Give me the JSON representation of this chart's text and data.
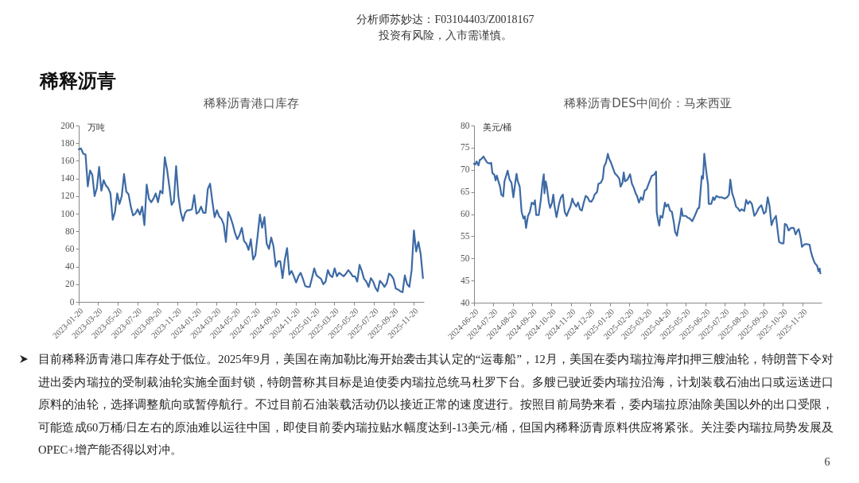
{
  "chart_data": [
    {
      "type": "line",
      "title": "稀释沥青港口库存",
      "ylabel": "万吨",
      "annotations": [
        "稀释沥青",
        "分析师苏妙达：F03104403/Z0018167",
        "投资有风险，入市需谨慎。",
        "目前稀释沥青港口库存处于低位。2025年9月，美国在南加勒比海开始袭击其认定的“运毒船”，12月，美国在委内瑞拉海岸扣押三艘油轮，特朗普下令对进出委内瑞拉的受制裁油轮实施全面封锁，特朗普称其目标是迫使委内瑞拉总统马杜罗下台。多艘已驶近委内瑞拉沿海，计划装载石油出口或运送进口原料的油轮，选择调整航向或暂停航行。不过目前石油装载活动仍以接近正常的速度进行。按照目前局势来看，委内瑞拉原油除美国以外的出口受限，可能造成60万桶/日左右的原油难以运往中国，即使目前委内瑞拉贴水幅度达到-13美元/桶，但国内稀释沥青原料供应将紧张。关注委内瑞拉局势发展及OPEC+增产能否得以对冲。",
        "6"
      ],
      "x": [
        "2023-01-20",
        "2023-01-27",
        "2023-02-03",
        "2023-02-10",
        "2023-02-17",
        "2023-02-24",
        "2023-03-03",
        "2023-03-10",
        "2023-03-17",
        "2023-03-24",
        "2023-03-31",
        "2023-04-07",
        "2023-04-14",
        "2023-04-21",
        "2023-04-28",
        "2023-05-05",
        "2023-05-12",
        "2023-05-19",
        "2023-05-26",
        "2023-06-02",
        "2023-06-09",
        "2023-06-16",
        "2023-06-23",
        "2023-06-30",
        "2023-07-07",
        "2023-07-14",
        "2023-07-21",
        "2023-07-28",
        "2023-08-04",
        "2023-08-11",
        "2023-08-18",
        "2023-08-25",
        "2023-09-01",
        "2023-09-08",
        "2023-09-15",
        "2023-09-22",
        "2023-09-29",
        "2023-10-06",
        "2023-10-13",
        "2023-10-20",
        "2023-10-27",
        "2023-11-03",
        "2023-11-10",
        "2023-11-17",
        "2023-11-24",
        "2023-12-01",
        "2023-12-08",
        "2023-12-15",
        "2023-12-22",
        "2023-12-29",
        "2024-01-05",
        "2024-01-12",
        "2024-01-19",
        "2024-01-26",
        "2024-02-02",
        "2024-02-09",
        "2024-02-16",
        "2024-02-23",
        "2024-03-01",
        "2024-03-08",
        "2024-03-15",
        "2024-03-22",
        "2024-03-29",
        "2024-04-05",
        "2024-04-12",
        "2024-04-19",
        "2024-04-26",
        "2024-05-03",
        "2024-05-10",
        "2024-05-17",
        "2024-05-24",
        "2024-05-31",
        "2024-06-07",
        "2024-06-14",
        "2024-06-21",
        "2024-06-28",
        "2024-07-05",
        "2024-07-12",
        "2024-07-19",
        "2024-07-26",
        "2024-08-02",
        "2024-08-09",
        "2024-08-16",
        "2024-08-23",
        "2024-08-30",
        "2024-09-06",
        "2024-09-13",
        "2024-09-20",
        "2024-09-27",
        "2024-10-04",
        "2024-10-11",
        "2024-10-18",
        "2024-10-25",
        "2024-11-01",
        "2024-11-08",
        "2024-11-15",
        "2024-11-22",
        "2024-11-29",
        "2024-12-06",
        "2024-12-13",
        "2024-12-20",
        "2024-12-27",
        "2025-01-03",
        "2025-01-10",
        "2025-01-17",
        "2025-01-24",
        "2025-01-31",
        "2025-02-07",
        "2025-02-14",
        "2025-02-21",
        "2025-02-28",
        "2025-03-07",
        "2025-03-14",
        "2025-03-21",
        "2025-03-28",
        "2025-04-04",
        "2025-04-11",
        "2025-04-18",
        "2025-04-25",
        "2025-05-02",
        "2025-05-09",
        "2025-05-16",
        "2025-05-23",
        "2025-05-30",
        "2025-06-06",
        "2025-06-13",
        "2025-06-20",
        "2025-06-27",
        "2025-07-04",
        "2025-07-11",
        "2025-07-18",
        "2025-07-25",
        "2025-08-01",
        "2025-08-08",
        "2025-08-15",
        "2025-08-22",
        "2025-08-29",
        "2025-09-05",
        "2025-09-12",
        "2025-09-19",
        "2025-09-26",
        "2025-10-03",
        "2025-10-10",
        "2025-10-17",
        "2025-10-24",
        "2025-10-31",
        "2025-11-07",
        "2025-11-14",
        "2025-11-21",
        "2025-11-28",
        "2025-12-05",
        "2025-12-12",
        "2025-12-19"
      ],
      "series": [
        {
          "color": "#3d6aa5",
          "values": [
            173,
            174,
            168,
            167,
            131,
            149,
            144,
            120,
            129,
            153,
            126,
            138,
            132,
            129,
            123,
            93,
            102,
            123,
            111,
            120,
            145,
            125,
            122,
            108,
            98,
            100,
            105,
            99,
            108,
            87,
            133,
            117,
            113,
            117,
            123,
            113,
            126,
            123,
            164,
            150,
            131,
            110,
            114,
            154,
            120,
            102,
            92,
            101,
            104,
            104,
            105,
            121,
            100,
            102,
            108,
            101,
            101,
            128,
            134,
            114,
            96,
            104,
            97,
            94,
            88,
            68,
            102,
            96,
            88,
            78,
            71,
            76,
            84,
            69,
            66,
            59,
            71,
            48,
            53,
            75,
            99,
            84,
            96,
            66,
            60,
            73,
            63,
            40,
            46,
            46,
            27,
            48,
            61,
            31,
            35,
            29,
            22,
            29,
            33,
            26,
            18,
            17,
            17,
            27,
            38,
            30,
            28,
            26,
            20,
            23,
            36,
            30,
            28,
            38,
            29,
            33,
            31,
            29,
            32,
            36,
            33,
            29,
            29,
            23,
            42,
            35,
            26,
            23,
            17,
            27,
            23,
            16,
            12,
            24,
            21,
            17,
            21,
            32,
            30,
            26,
            15,
            14,
            12,
            11,
            30,
            20,
            17,
            36,
            81,
            57,
            68,
            54,
            27
          ]
        }
      ],
      "xlim": [
        "2023-01-20",
        "2025-12-22"
      ],
      "xticks": [
        "2023-01-20",
        "2023-03-20",
        "2023-05-20",
        "2023-07-20",
        "2023-09-20",
        "2023-11-20",
        "2024-01-20",
        "2024-03-20",
        "2024-05-20",
        "2024-07-20",
        "2024-09-20",
        "2024-11-20",
        "2025-01-20",
        "2025-03-20",
        "2025-05-20",
        "2025-07-20",
        "2025-09-20",
        "2025-11-20"
      ],
      "ylim": [
        0,
        200
      ],
      "yticks": [
        0,
        20,
        40,
        60,
        80,
        100,
        120,
        140,
        160,
        180,
        200
      ]
    },
    {
      "type": "line",
      "title": "稀释沥青DES中间价：马来西亚",
      "ylabel": "美元/桶",
      "x": [
        "2024-06-20",
        "2024-06-22",
        "2024-06-24",
        "2024-06-27",
        "2024-06-29",
        "2024-07-02",
        "2024-07-05",
        "2024-07-08",
        "2024-07-11",
        "2024-07-15",
        "2024-07-17",
        "2024-07-19",
        "2024-07-22",
        "2024-07-24",
        "2024-07-26",
        "2024-07-29",
        "2024-07-31",
        "2024-08-02",
        "2024-08-05",
        "2024-08-07",
        "2024-08-12",
        "2024-08-15",
        "2024-08-18",
        "2024-08-21",
        "2024-08-24",
        "2024-08-26",
        "2024-08-28",
        "2024-08-31",
        "2024-09-03",
        "2024-09-06",
        "2024-09-08",
        "2024-09-10",
        "2024-09-13",
        "2024-09-16",
        "2024-09-19",
        "2024-09-22",
        "2024-09-24",
        "2024-09-26",
        "2024-09-30",
        "2024-10-03",
        "2024-10-06",
        "2024-10-08",
        "2024-10-09",
        "2024-10-11",
        "2024-10-13",
        "2024-10-16",
        "2024-10-18",
        "2024-10-21",
        "2024-10-23",
        "2024-10-25",
        "2024-10-28",
        "2024-11-01",
        "2024-11-04",
        "2024-11-07",
        "2024-11-10",
        "2024-11-13",
        "2024-11-16",
        "2024-11-19",
        "2024-11-22",
        "2024-11-24",
        "2024-11-28",
        "2024-12-01",
        "2024-12-04",
        "2024-12-07",
        "2024-12-10",
        "2024-12-13",
        "2024-12-16",
        "2024-12-19",
        "2024-12-22",
        "2024-12-25",
        "2024-12-27",
        "2024-12-31",
        "2025-01-02",
        "2025-01-06",
        "2025-01-09",
        "2025-01-11",
        "2025-01-14",
        "2025-01-17",
        "2025-01-19",
        "2025-01-22",
        "2025-01-25",
        "2025-01-28",
        "2025-02-01",
        "2025-02-04",
        "2025-02-06",
        "2025-02-09",
        "2025-02-11",
        "2025-02-13",
        "2025-02-17",
        "2025-02-21",
        "2025-02-24",
        "2025-02-27",
        "2025-03-02",
        "2025-03-04",
        "2025-03-07",
        "2025-03-10",
        "2025-03-13",
        "2025-03-16",
        "2025-03-19",
        "2025-03-23",
        "2025-03-27",
        "2025-03-31",
        "2025-04-03",
        "2025-04-04",
        "2025-04-06",
        "2025-04-08",
        "2025-04-10",
        "2025-04-13",
        "2025-04-17",
        "2025-04-19",
        "2025-04-22",
        "2025-04-25",
        "2025-04-28",
        "2025-05-01",
        "2025-05-03",
        "2025-05-06",
        "2025-05-08",
        "2025-05-11",
        "2025-05-13",
        "2025-05-15",
        "2025-05-20",
        "2025-05-23",
        "2025-05-26",
        "2025-05-30",
        "2025-06-03",
        "2025-06-08",
        "2025-06-10",
        "2025-06-12",
        "2025-06-14",
        "2025-06-16",
        "2025-06-18",
        "2025-06-21",
        "2025-06-24",
        "2025-06-25",
        "2025-06-29",
        "2025-07-02",
        "2025-07-04",
        "2025-07-07",
        "2025-07-11",
        "2025-07-15",
        "2025-07-20",
        "2025-07-24",
        "2025-07-27",
        "2025-07-29",
        "2025-08-01",
        "2025-08-04",
        "2025-08-07",
        "2025-08-10",
        "2025-08-13",
        "2025-08-16",
        "2025-08-20",
        "2025-08-23",
        "2025-08-26",
        "2025-08-29",
        "2025-09-01",
        "2025-09-05",
        "2025-09-08",
        "2025-09-12",
        "2025-09-16",
        "2025-09-20",
        "2025-09-23",
        "2025-09-26",
        "2025-09-29",
        "2025-10-02",
        "2025-10-05",
        "2025-10-09",
        "2025-10-12",
        "2025-10-14",
        "2025-10-18",
        "2025-10-21",
        "2025-10-23",
        "2025-10-26",
        "2025-10-29",
        "2025-11-02",
        "2025-11-06",
        "2025-11-09",
        "2025-11-12",
        "2025-11-14",
        "2025-11-17",
        "2025-11-19",
        "2025-11-23",
        "2025-11-27",
        "2025-12-01",
        "2025-12-03",
        "2025-12-06",
        "2025-12-09",
        "2025-12-13",
        "2025-12-15",
        "2025-12-17",
        "2025-12-18"
      ],
      "series": [
        {
          "color": "#3d6aa5",
          "values": [
            71.4,
            71.2,
            71.9,
            71.0,
            72.2,
            72.5,
            73.0,
            72.2,
            71.6,
            71.4,
            71.6,
            69.2,
            68.9,
            67.6,
            68.7,
            67.1,
            66.2,
            64.4,
            64.0,
            67.4,
            69.8,
            67.8,
            67.1,
            63.8,
            67.1,
            69.1,
            67.4,
            66.2,
            60.5,
            59.0,
            59.5,
            56.9,
            59.6,
            60.5,
            62.6,
            62.2,
            63.1,
            59.8,
            59.8,
            62.9,
            67.1,
            69.0,
            64.7,
            67.4,
            65.9,
            62.6,
            61.4,
            62.6,
            64.4,
            61.7,
            59.3,
            62.3,
            63.8,
            64.4,
            60.5,
            59.6,
            60.7,
            61.7,
            63.5,
            62.6,
            61.7,
            62.6,
            61.1,
            60.8,
            62.6,
            64.1,
            63.8,
            62.9,
            62.8,
            63.5,
            64.4,
            65.0,
            66.8,
            67.1,
            68.0,
            70.7,
            71.6,
            73.6,
            72.5,
            71.6,
            70.4,
            69.2,
            68.6,
            68.0,
            66.2,
            67.1,
            69.4,
            67.4,
            67.8,
            69.0,
            66.8,
            65.9,
            64.6,
            64.1,
            62.6,
            63.8,
            63.2,
            65.3,
            65.6,
            67.1,
            68.6,
            68.9,
            69.6,
            60.5,
            58.7,
            57.4,
            59.6,
            59.2,
            62.6,
            61.7,
            62.2,
            60.8,
            60.5,
            58.1,
            56.0,
            55.1,
            56.9,
            59.0,
            61.3,
            59.6,
            59.6,
            59.2,
            59.0,
            58.4,
            59.6,
            61.3,
            61.4,
            65.0,
            68.6,
            68.0,
            73.6,
            69.8,
            66.5,
            62.3,
            62.3,
            63.8,
            63.2,
            64.1,
            63.8,
            63.8,
            63.5,
            63.8,
            64.4,
            67.8,
            64.7,
            63.4,
            61.7,
            61.3,
            60.7,
            61.1,
            60.7,
            63.2,
            62.3,
            62.9,
            62.3,
            59.6,
            60.2,
            61.4,
            62.0,
            60.1,
            60.5,
            63.8,
            61.7,
            57.5,
            58.7,
            59.6,
            55.9,
            53.7,
            53.4,
            53.4,
            57.8,
            57.5,
            56.3,
            56.9,
            56.9,
            55.4,
            56.3,
            56.6,
            54.6,
            52.6,
            53.2,
            53.2,
            53.1,
            51.6,
            50.1,
            49.0,
            48.3,
            47.1,
            47.7,
            46.6
          ]
        }
      ],
      "xlim": [
        "2024-06-20",
        "2025-12-20"
      ],
      "xticks": [
        "2024-06-20",
        "2024-07-20",
        "2024-08-20",
        "2024-09-20",
        "2024-10-20",
        "2024-11-20",
        "2024-12-20",
        "2025-01-20",
        "2025-02-20",
        "2025-03-20",
        "2025-04-20",
        "2025-05-20",
        "2025-06-20",
        "2025-07-20",
        "2025-08-20",
        "2025-09-20",
        "2025-10-20",
        "2025-11-20"
      ],
      "ylim": [
        40,
        80
      ],
      "yticks": [
        40,
        45,
        50,
        55,
        60,
        65,
        70,
        75,
        80
      ]
    }
  ]
}
